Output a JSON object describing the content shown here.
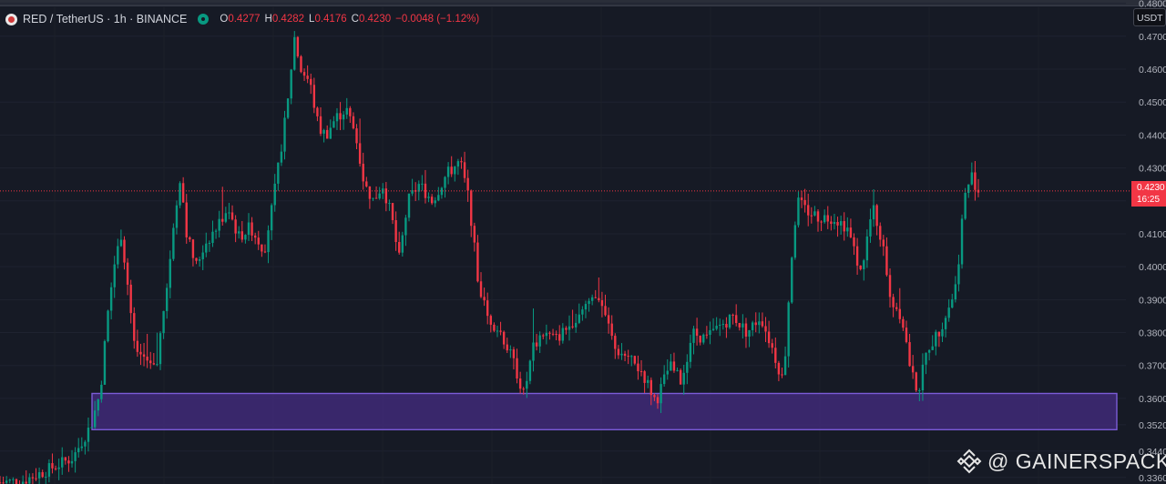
{
  "legend": {
    "symbol": "RED / TetherUS · 1h · BINANCE",
    "o_label": "O",
    "o_value": "0.4277",
    "h_label": "H",
    "h_value": "0.4282",
    "l_label": "L",
    "l_value": "0.4176",
    "c_label": "C",
    "c_value": "0.4230",
    "change": "−0.0048 (−1.12%)"
  },
  "currency_selector": "USDT",
  "last_price": {
    "price": "0.4230",
    "countdown": "16:25"
  },
  "watermark": "@ GAINERSPACK",
  "colors": {
    "background": "#161a25",
    "up": "#089981",
    "down": "#f23645",
    "zone_fill": "#3f2a78",
    "zone_border": "#7b5cd6",
    "axis_text": "#b2b5be"
  },
  "chart_data": {
    "type": "candlestick",
    "symbol": "RED/USDT",
    "interval": "1h",
    "exchange": "BINANCE",
    "y_axis_ticks": [
      "0.4800",
      "0.4700",
      "0.4600",
      "0.4500",
      "0.4400",
      "0.4300",
      "0.4200",
      "0.4100",
      "0.4000",
      "0.3900",
      "0.3800",
      "0.3700",
      "0.3600",
      "0.3520",
      "0.3440",
      "0.3360"
    ],
    "ylim": [
      0.334,
      0.481
    ],
    "last_price": 0.423,
    "support_zone": {
      "low": 0.3505,
      "high": 0.3615
    },
    "price_path": [
      [
        0,
        0.3345
      ],
      [
        25,
        0.335
      ],
      [
        50,
        0.338
      ],
      [
        80,
        0.342
      ],
      [
        100,
        0.352
      ],
      [
        110,
        0.362
      ],
      [
        118,
        0.385
      ],
      [
        125,
        0.4
      ],
      [
        133,
        0.41
      ],
      [
        140,
        0.395
      ],
      [
        148,
        0.375
      ],
      [
        160,
        0.372
      ],
      [
        172,
        0.37
      ],
      [
        183,
        0.395
      ],
      [
        192,
        0.415
      ],
      [
        198,
        0.428
      ],
      [
        205,
        0.41
      ],
      [
        215,
        0.4
      ],
      [
        225,
        0.407
      ],
      [
        238,
        0.412
      ],
      [
        250,
        0.418
      ],
      [
        262,
        0.409
      ],
      [
        275,
        0.412
      ],
      [
        290,
        0.405
      ],
      [
        300,
        0.42
      ],
      [
        308,
        0.435
      ],
      [
        316,
        0.45
      ],
      [
        323,
        0.47
      ],
      [
        330,
        0.46
      ],
      [
        340,
        0.456
      ],
      [
        350,
        0.442
      ],
      [
        358,
        0.44
      ],
      [
        368,
        0.445
      ],
      [
        380,
        0.448
      ],
      [
        390,
        0.44
      ],
      [
        400,
        0.425
      ],
      [
        410,
        0.42
      ],
      [
        420,
        0.425
      ],
      [
        430,
        0.415
      ],
      [
        438,
        0.402
      ],
      [
        448,
        0.42
      ],
      [
        460,
        0.425
      ],
      [
        475,
        0.42
      ],
      [
        490,
        0.428
      ],
      [
        505,
        0.432
      ],
      [
        515,
        0.42
      ],
      [
        525,
        0.395
      ],
      [
        535,
        0.385
      ],
      [
        550,
        0.38
      ],
      [
        565,
        0.37
      ],
      [
        575,
        0.361
      ],
      [
        585,
        0.375
      ],
      [
        595,
        0.38
      ],
      [
        610,
        0.378
      ],
      [
        625,
        0.382
      ],
      [
        640,
        0.388
      ],
      [
        656,
        0.392
      ],
      [
        665,
        0.385
      ],
      [
        675,
        0.375
      ],
      [
        690,
        0.372
      ],
      [
        705,
        0.368
      ],
      [
        720,
        0.359
      ],
      [
        735,
        0.37
      ],
      [
        748,
        0.365
      ],
      [
        760,
        0.38
      ],
      [
        775,
        0.378
      ],
      [
        790,
        0.382
      ],
      [
        805,
        0.385
      ],
      [
        820,
        0.38
      ],
      [
        835,
        0.385
      ],
      [
        848,
        0.375
      ],
      [
        860,
        0.365
      ],
      [
        868,
        0.4
      ],
      [
        875,
        0.42
      ],
      [
        885,
        0.417
      ],
      [
        900,
        0.415
      ],
      [
        915,
        0.415
      ],
      [
        930,
        0.412
      ],
      [
        945,
        0.398
      ],
      [
        958,
        0.418
      ],
      [
        968,
        0.408
      ],
      [
        978,
        0.39
      ],
      [
        990,
        0.385
      ],
      [
        1000,
        0.368
      ],
      [
        1008,
        0.362
      ],
      [
        1018,
        0.375
      ],
      [
        1030,
        0.38
      ],
      [
        1042,
        0.388
      ],
      [
        1050,
        0.395
      ],
      [
        1058,
        0.42
      ],
      [
        1066,
        0.428
      ],
      [
        1074,
        0.423
      ]
    ],
    "candle_count": 300
  }
}
